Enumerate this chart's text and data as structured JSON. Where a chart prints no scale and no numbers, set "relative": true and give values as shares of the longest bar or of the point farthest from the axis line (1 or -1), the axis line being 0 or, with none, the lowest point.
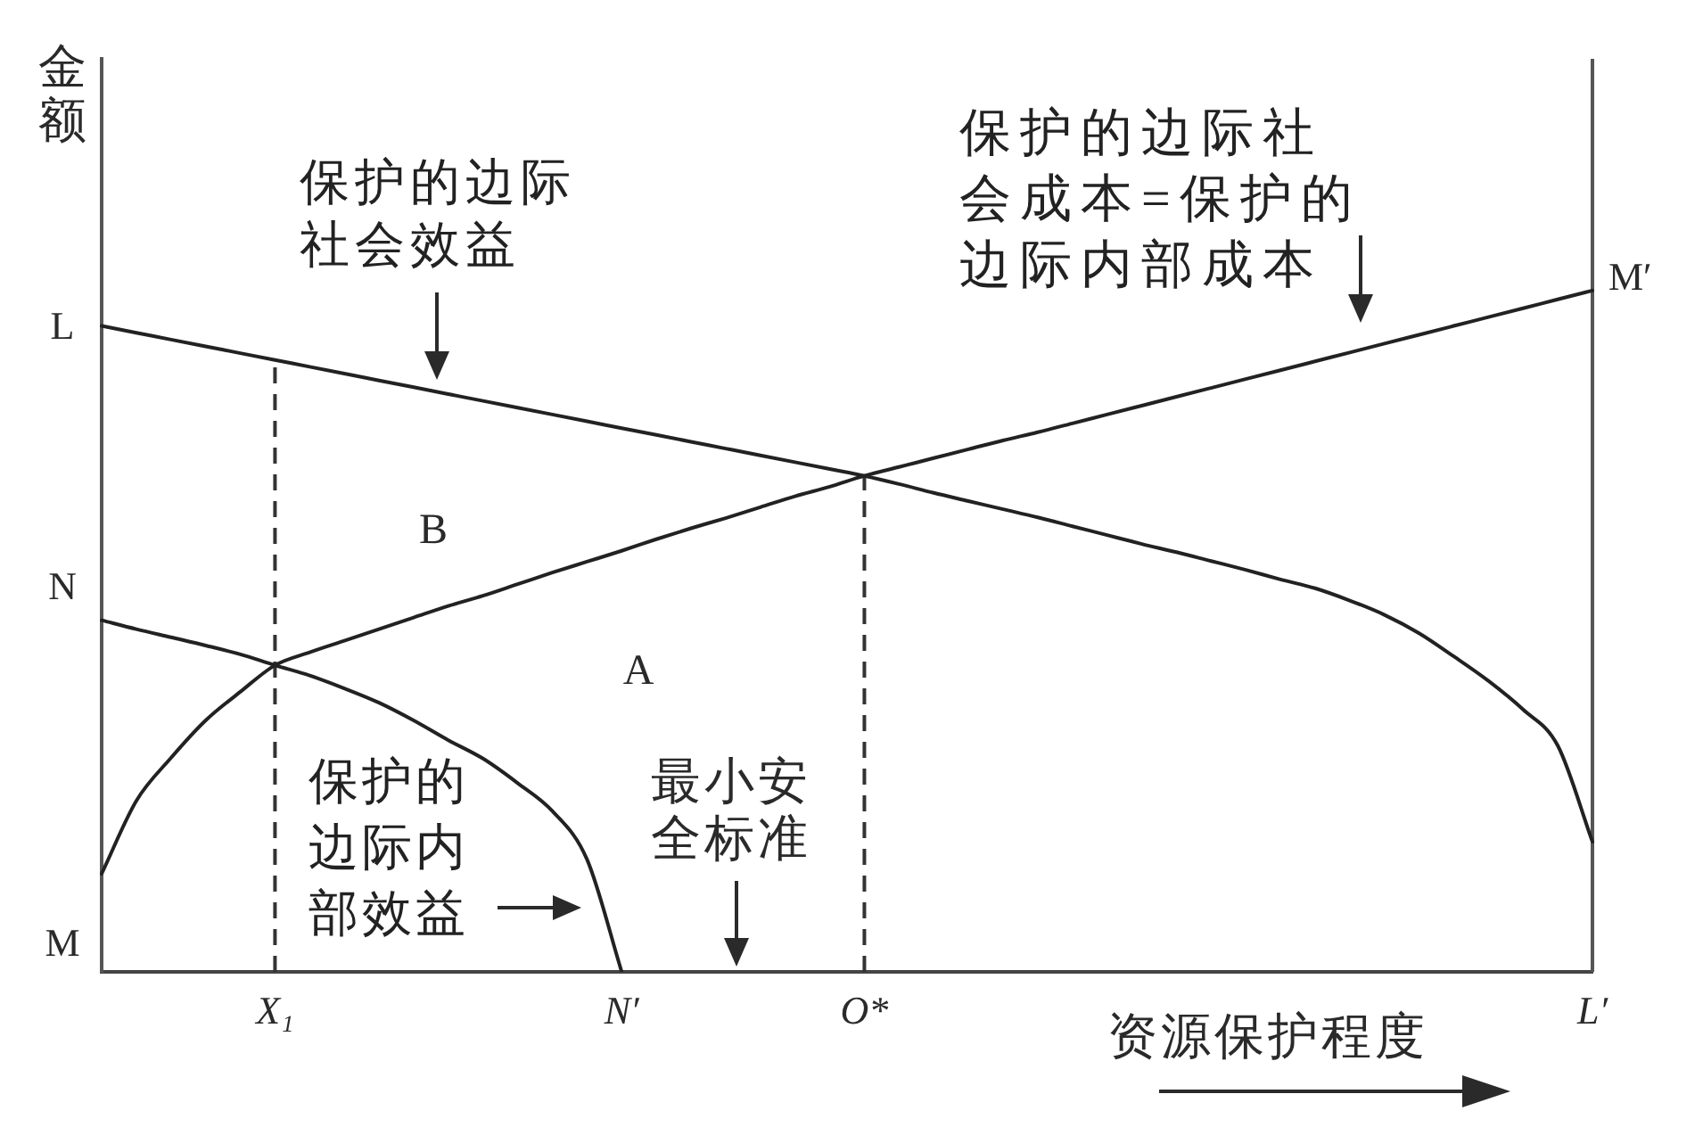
{
  "chart_data": {
    "type": "line",
    "relative": true,
    "xlabel": "资源保护程度",
    "ylabel": "金额",
    "categories": [
      null,
      null,
      null,
      null,
      null,
      "X₁",
      null,
      null,
      null,
      null,
      null,
      null,
      null,
      null,
      null,
      "N′",
      null,
      null,
      null,
      null,
      null,
      null,
      "O*",
      null,
      null,
      null,
      null,
      null,
      null,
      null,
      null,
      null,
      null,
      null,
      null,
      null,
      null,
      null,
      null,
      null,
      null,
      null,
      null,
      "L′"
    ],
    "series": [
      {
        "name": "保护的边际社会效益",
        "color": "#222222",
        "values": [
          0.948,
          0.938,
          0.928,
          0.918,
          0.908,
          0.898,
          0.888,
          0.878,
          0.868,
          0.858,
          0.848,
          0.838,
          0.828,
          0.818,
          0.808,
          0.798,
          0.788,
          0.778,
          0.768,
          0.758,
          0.748,
          0.738,
          0.728,
          0.716,
          0.703,
          0.691,
          0.679,
          0.667,
          0.654,
          0.641,
          0.628,
          0.616,
          0.603,
          0.59,
          0.576,
          0.563,
          0.545,
          0.524,
          0.497,
          0.463,
          0.427,
          0.385,
          0.332,
          0.191
        ]
      },
      {
        "name": "保护的边际社会成本=保护的边际内部成本",
        "color": "#222222",
        "values": [
          0.144,
          0.251,
          0.314,
          0.369,
          0.411,
          0.45,
          0.469,
          0.486,
          0.503,
          0.52,
          0.537,
          0.552,
          0.569,
          0.586,
          0.602,
          0.618,
          0.635,
          0.651,
          0.666,
          0.682,
          0.698,
          0.712,
          0.728,
          0.741,
          0.754,
          0.767,
          0.78,
          0.792,
          0.805,
          0.818,
          0.831,
          0.844,
          0.857,
          0.87,
          0.883,
          0.896,
          0.909,
          0.922,
          0.935,
          0.948,
          0.961,
          0.974,
          0.987,
          1
        ]
      },
      {
        "name": "保护的边际内部效益",
        "color": "#222222",
        "values": [
          0.516,
          0.503,
          0.491,
          0.479,
          0.466,
          0.45,
          0.435,
          0.416,
          0.395,
          0.369,
          0.34,
          0.313,
          0.277,
          0.236,
          0.165,
          0,
          null,
          null,
          null,
          null,
          null,
          null,
          null,
          null,
          null,
          null,
          null,
          null,
          null,
          null,
          null,
          null,
          null,
          null,
          null,
          null,
          null,
          null,
          null,
          null,
          null,
          null,
          null,
          null
        ]
      }
    ],
    "ref_lines": [
      {
        "axis": "x",
        "value": "X₁",
        "line_style": "dashed",
        "color": "#333333"
      },
      {
        "axis": "x",
        "value": "O*",
        "line_style": "dashed",
        "color": "#333333"
      },
      {
        "axis": "x",
        "value": "L′",
        "color": "#555555"
      }
    ],
    "annotations": [
      "L",
      "N",
      "M",
      {
        "text": "M′",
        "x": "L′",
        "y": 1
      },
      "B",
      "A",
      "最小安全标准"
    ]
  }
}
